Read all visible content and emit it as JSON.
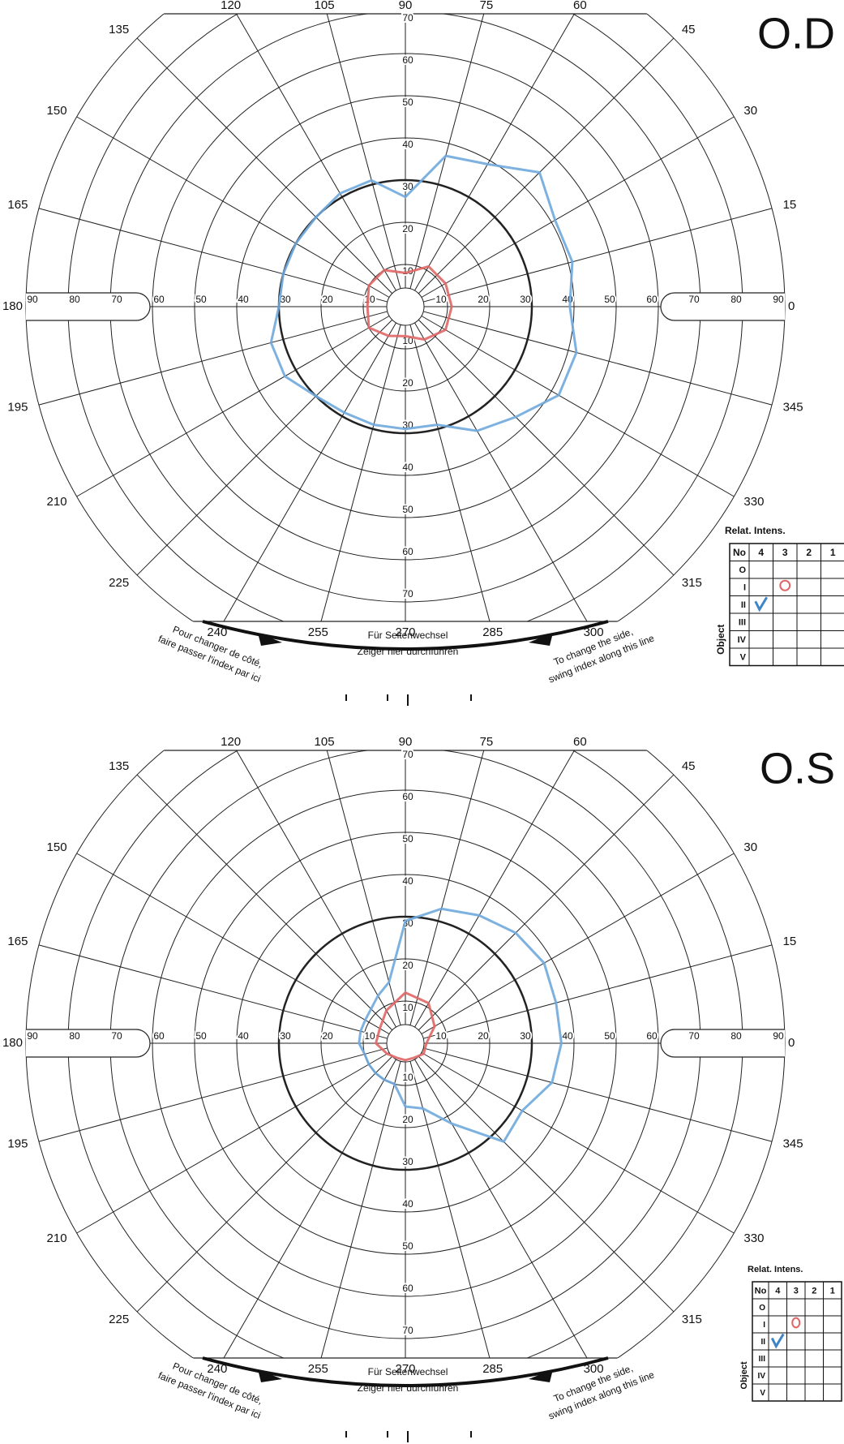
{
  "form": {
    "meridians": [
      0,
      15,
      30,
      45,
      60,
      75,
      90,
      105,
      120,
      135,
      150,
      165,
      180,
      195,
      210,
      225,
      240,
      255,
      270,
      285,
      300,
      315,
      330,
      345
    ],
    "rings": [
      10,
      20,
      30,
      40,
      50,
      60,
      70,
      80,
      90
    ],
    "vertical_rings": [
      10,
      20,
      30,
      40,
      50,
      60,
      70
    ],
    "bold_ring": 30,
    "table_title": "Relat. Intens.",
    "table_header": [
      "No",
      "4",
      "3",
      "2",
      "1"
    ],
    "table_rows": [
      "O",
      "I",
      "II",
      "III",
      "IV",
      "V"
    ],
    "object_label": "Object",
    "footer_center": [
      "Für Seitenwechsel",
      "Zeiger hier durchführen"
    ],
    "footer_left": [
      "Pour changer de côté,",
      "faire passer l'index par ici"
    ],
    "footer_right": [
      "To change the side,",
      "swing index along this line"
    ]
  },
  "panels": [
    {
      "title": "O.D",
      "isopters": [
        {
          "color": "#6fa8dc",
          "points": [
            {
              "meridian": 0,
              "degrees": 39
            },
            {
              "meridian": 15,
              "degrees": 41
            },
            {
              "meridian": 30,
              "degrees": 41
            },
            {
              "meridian": 45,
              "degrees": 45
            },
            {
              "meridian": 60,
              "degrees": 39
            },
            {
              "meridian": 75,
              "degrees": 37
            },
            {
              "meridian": 90,
              "degrees": 26
            },
            {
              "meridian": 105,
              "degrees": 31
            },
            {
              "meridian": 120,
              "degrees": 31
            },
            {
              "meridian": 135,
              "degrees": 30
            },
            {
              "meridian": 150,
              "degrees": 30
            },
            {
              "meridian": 165,
              "degrees": 30
            },
            {
              "meridian": 180,
              "degrees": 30
            },
            {
              "meridian": 195,
              "degrees": 33
            },
            {
              "meridian": 210,
              "degrees": 33
            },
            {
              "meridian": 225,
              "degrees": 30
            },
            {
              "meridian": 240,
              "degrees": 29
            },
            {
              "meridian": 255,
              "degrees": 29
            },
            {
              "meridian": 270,
              "degrees": 29
            },
            {
              "meridian": 285,
              "degrees": 29
            },
            {
              "meridian": 300,
              "degrees": 34
            },
            {
              "meridian": 315,
              "degrees": 37
            },
            {
              "meridian": 330,
              "degrees": 42
            },
            {
              "meridian": 345,
              "degrees": 42
            }
          ]
        },
        {
          "color": "#e06666",
          "points": [
            {
              "meridian": 0,
              "degrees": 11
            },
            {
              "meridian": 30,
              "degrees": 11
            },
            {
              "meridian": 60,
              "degrees": 11
            },
            {
              "meridian": 90,
              "degrees": 8
            },
            {
              "meridian": 120,
              "degrees": 10
            },
            {
              "meridian": 150,
              "degrees": 10
            },
            {
              "meridian": 180,
              "degrees": 9
            },
            {
              "meridian": 210,
              "degrees": 10
            },
            {
              "meridian": 240,
              "degrees": 8
            },
            {
              "meridian": 270,
              "degrees": 7
            },
            {
              "meridian": 300,
              "degrees": 9
            },
            {
              "meridian": 330,
              "degrees": 11
            }
          ]
        }
      ]
    },
    {
      "title": "O.S",
      "isopters": [
        {
          "color": "#6fa8dc",
          "points": [
            {
              "meridian": 0,
              "degrees": 37
            },
            {
              "meridian": 15,
              "degrees": 37
            },
            {
              "meridian": 30,
              "degrees": 38
            },
            {
              "meridian": 45,
              "degrees": 37
            },
            {
              "meridian": 60,
              "degrees": 35
            },
            {
              "meridian": 75,
              "degrees": 33
            },
            {
              "meridian": 90,
              "degrees": 29
            },
            {
              "meridian": 105,
              "degrees": 15
            },
            {
              "meridian": 120,
              "degrees": 13
            },
            {
              "meridian": 150,
              "degrees": 11
            },
            {
              "meridian": 165,
              "degrees": 11
            },
            {
              "meridian": 180,
              "degrees": 11
            },
            {
              "meridian": 195,
              "degrees": 10
            },
            {
              "meridian": 210,
              "degrees": 10
            },
            {
              "meridian": 225,
              "degrees": 10
            },
            {
              "meridian": 240,
              "degrees": 10
            },
            {
              "meridian": 255,
              "degrees": 10
            },
            {
              "meridian": 270,
              "degrees": 15
            },
            {
              "meridian": 285,
              "degrees": 16
            },
            {
              "meridian": 300,
              "degrees": 22
            },
            {
              "meridian": 315,
              "degrees": 33
            },
            {
              "meridian": 330,
              "degrees": 32
            },
            {
              "meridian": 345,
              "degrees": 36
            }
          ]
        },
        {
          "color": "#e06666",
          "points": [
            {
              "meridian": 0,
              "degrees": 5
            },
            {
              "meridian": 30,
              "degrees": 8
            },
            {
              "meridian": 60,
              "degrees": 11
            },
            {
              "meridian": 90,
              "degrees": 12
            },
            {
              "meridian": 120,
              "degrees": 9
            },
            {
              "meridian": 150,
              "degrees": 7
            },
            {
              "meridian": 180,
              "degrees": 7
            },
            {
              "meridian": 210,
              "degrees": 5
            },
            {
              "meridian": 240,
              "degrees": 4
            },
            {
              "meridian": 270,
              "degrees": 4
            },
            {
              "meridian": 300,
              "degrees": 4
            },
            {
              "meridian": 330,
              "degrees": 5
            }
          ]
        }
      ]
    }
  ]
}
